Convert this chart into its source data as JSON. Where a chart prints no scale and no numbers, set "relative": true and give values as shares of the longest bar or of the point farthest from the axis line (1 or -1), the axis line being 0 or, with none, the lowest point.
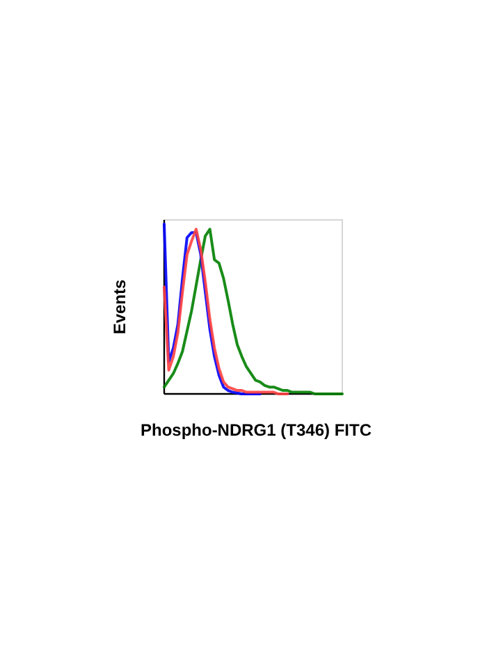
{
  "chart_data": {
    "type": "line",
    "xlabel": "Phospho-NDRG1 (T346) FITC",
    "ylabel": "Events",
    "relative": true,
    "marker": "none",
    "categories": [
      null,
      null,
      null,
      null,
      null,
      null,
      null,
      null,
      null,
      null,
      null,
      null,
      null,
      null,
      null,
      null,
      null,
      null,
      null,
      null,
      null,
      null,
      null,
      null,
      null,
      null,
      null,
      null,
      null,
      null,
      null,
      null,
      null,
      null,
      null,
      null,
      null,
      null,
      null,
      null
    ],
    "series": [
      {
        "color": "#008000",
        "values": [
          0.04,
          0.08,
          0.12,
          0.18,
          0.25,
          0.37,
          0.49,
          0.64,
          0.79,
          0.93,
          0.97,
          0.79,
          0.77,
          0.68,
          0.55,
          0.41,
          0.29,
          0.22,
          0.16,
          0.12,
          0.08,
          0.07,
          0.05,
          0.04,
          0.04,
          0.03,
          0.02,
          0.02,
          0.01,
          0.01,
          0.01,
          0.01,
          0.01,
          0,
          0,
          0,
          0,
          0,
          0,
          0
        ]
      },
      {
        "color": "#0000ff",
        "values": [
          1,
          0.19,
          0.27,
          0.41,
          0.68,
          0.92,
          0.95,
          0.95,
          0.82,
          0.6,
          0.38,
          0.22,
          0.11,
          0.04,
          0.02,
          0.01,
          0.005,
          0,
          0,
          0,
          0,
          0,
          null,
          null,
          null,
          null,
          null,
          null,
          null,
          null,
          null,
          null,
          null,
          null,
          null,
          null,
          null,
          null,
          null,
          null
        ]
      },
      {
        "color": "#ff4040",
        "values": [
          0.63,
          0.14,
          0.22,
          0.36,
          0.6,
          0.82,
          0.9,
          0.97,
          0.85,
          0.66,
          0.44,
          0.27,
          0.15,
          0.07,
          0.04,
          0.03,
          0.02,
          0.02,
          0.01,
          0.01,
          0.01,
          0.01,
          0.01,
          0.01,
          0.01,
          0,
          0,
          0,
          null,
          null,
          null,
          null,
          null,
          null,
          null,
          null,
          null,
          null,
          null,
          null
        ]
      }
    ]
  }
}
